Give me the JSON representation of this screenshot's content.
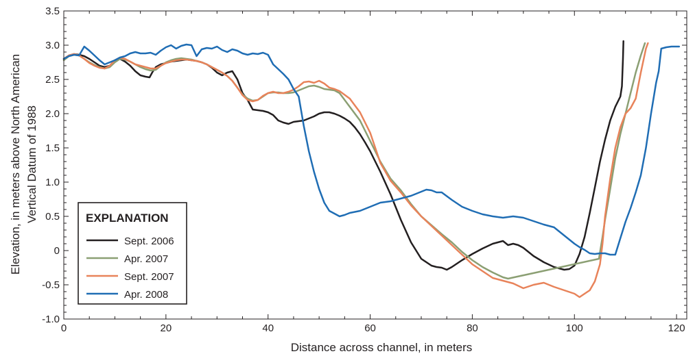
{
  "chart_data": {
    "type": "line",
    "xlabel": "Distance across channel, in meters",
    "ylabel_lines": [
      "Elevation, in meters above North American",
      "Vertical Datum of 1988"
    ],
    "xlim": [
      0,
      122
    ],
    "ylim": [
      -1.0,
      3.5
    ],
    "x_ticks": [
      0,
      20,
      40,
      60,
      80,
      100,
      120
    ],
    "x_tick_labels": [
      "0",
      "20",
      "40",
      "60",
      "80",
      "100",
      "120"
    ],
    "y_ticks": [
      -1.0,
      -0.5,
      0,
      0.5,
      1.0,
      1.5,
      2.0,
      2.5,
      3.0,
      3.5
    ],
    "y_tick_labels": [
      "-1.0",
      "-0.5",
      "0",
      "0.5",
      "1.0",
      "1.5",
      "2.0",
      "2.5",
      "3.0",
      "3.5"
    ],
    "grid": false,
    "legend": {
      "title": "EXPLANATION",
      "position": "bottom-left"
    },
    "series": [
      {
        "name": "Sept. 2006",
        "color": "#231f20",
        "x": [
          0,
          1,
          2,
          3,
          4,
          5,
          6,
          7,
          8,
          9,
          10,
          11,
          12,
          13,
          14,
          15,
          16,
          16.8,
          17.3,
          18,
          19,
          20,
          21,
          22,
          23,
          24,
          25,
          26,
          27,
          28,
          29,
          30,
          31,
          32,
          33,
          34,
          35,
          36,
          37,
          38,
          39,
          40,
          41,
          42,
          43,
          44,
          45,
          46,
          47,
          48,
          49,
          50,
          51,
          52,
          53,
          54,
          55,
          56,
          57,
          58,
          59,
          60,
          62,
          64,
          66,
          68,
          70,
          72,
          73,
          74,
          75,
          76,
          78,
          80,
          82,
          84,
          86,
          87,
          88,
          89,
          90,
          92,
          94,
          96,
          98,
          99,
          100,
          101,
          102,
          103,
          104,
          105,
          106,
          107,
          108,
          109,
          109.3,
          109.5,
          109.6
        ],
        "y": [
          2.8,
          2.85,
          2.87,
          2.86,
          2.84,
          2.8,
          2.75,
          2.7,
          2.68,
          2.7,
          2.78,
          2.8,
          2.76,
          2.7,
          2.62,
          2.56,
          2.54,
          2.53,
          2.6,
          2.68,
          2.72,
          2.74,
          2.76,
          2.77,
          2.78,
          2.79,
          2.78,
          2.77,
          2.75,
          2.72,
          2.67,
          2.6,
          2.56,
          2.6,
          2.62,
          2.5,
          2.3,
          2.2,
          2.06,
          2.05,
          2.04,
          2.02,
          1.98,
          1.9,
          1.87,
          1.85,
          1.88,
          1.89,
          1.9,
          1.93,
          1.96,
          2.0,
          2.02,
          2.02,
          2.0,
          1.97,
          1.93,
          1.88,
          1.8,
          1.7,
          1.58,
          1.45,
          1.15,
          0.82,
          0.45,
          0.12,
          -0.12,
          -0.22,
          -0.24,
          -0.25,
          -0.28,
          -0.24,
          -0.14,
          -0.05,
          0.03,
          0.1,
          0.14,
          0.08,
          0.1,
          0.08,
          0.04,
          -0.08,
          -0.17,
          -0.24,
          -0.28,
          -0.27,
          -0.22,
          -0.05,
          0.2,
          0.55,
          0.92,
          1.3,
          1.62,
          1.9,
          2.1,
          2.25,
          2.4,
          2.8,
          3.06
        ]
      },
      {
        "name": "Apr. 2007",
        "color": "#8b9f73",
        "x": [
          0,
          1,
          2,
          3,
          4,
          5,
          6,
          7,
          8,
          9,
          10,
          11,
          12,
          13,
          14,
          15,
          16,
          17,
          18,
          19,
          20,
          21,
          22,
          23,
          24,
          25,
          26,
          27,
          28,
          29,
          30,
          31,
          32,
          33,
          34,
          35,
          36,
          37,
          38,
          39,
          40,
          41,
          42,
          43,
          44,
          45,
          46,
          47,
          48,
          49,
          50,
          51,
          52,
          53,
          54,
          56,
          58,
          60,
          62,
          64,
          66,
          68,
          70,
          72,
          74,
          76,
          78,
          80,
          82,
          84,
          86,
          87,
          104.8,
          105.5,
          106,
          107,
          108,
          109,
          110,
          111,
          112,
          113,
          113.8
        ],
        "y": [
          2.78,
          2.84,
          2.86,
          2.85,
          2.8,
          2.75,
          2.71,
          2.68,
          2.66,
          2.68,
          2.75,
          2.8,
          2.79,
          2.76,
          2.72,
          2.68,
          2.65,
          2.63,
          2.64,
          2.7,
          2.75,
          2.78,
          2.8,
          2.81,
          2.8,
          2.79,
          2.77,
          2.75,
          2.72,
          2.68,
          2.64,
          2.6,
          2.55,
          2.48,
          2.38,
          2.28,
          2.22,
          2.19,
          2.2,
          2.25,
          2.3,
          2.31,
          2.31,
          2.3,
          2.3,
          2.31,
          2.34,
          2.37,
          2.4,
          2.41,
          2.39,
          2.36,
          2.35,
          2.34,
          2.3,
          2.1,
          1.9,
          1.6,
          1.3,
          1.05,
          0.88,
          0.68,
          0.5,
          0.37,
          0.24,
          0.12,
          -0.02,
          -0.14,
          -0.24,
          -0.32,
          -0.39,
          -0.41,
          -0.12,
          0.2,
          0.45,
          0.9,
          1.35,
          1.7,
          2.0,
          2.3,
          2.6,
          2.85,
          3.03
        ]
      },
      {
        "name": "Sept. 2007",
        "color": "#e8835a",
        "x": [
          0,
          1,
          2,
          3,
          4,
          5,
          6,
          7,
          8,
          9,
          10,
          11,
          12,
          13,
          14,
          15,
          16,
          17,
          18,
          19,
          20,
          21,
          22,
          23,
          24,
          25,
          26,
          27,
          28,
          29,
          30,
          31,
          32,
          33,
          34,
          35,
          36,
          37,
          38,
          39,
          40,
          41,
          42,
          43,
          44,
          45,
          46,
          47,
          48,
          49,
          50,
          51,
          52,
          53,
          54,
          56,
          58,
          60,
          62,
          64,
          66,
          68,
          70,
          72,
          74,
          76,
          78,
          80,
          82,
          84,
          86,
          88,
          90,
          92,
          94,
          96,
          98,
          100,
          101,
          102,
          103,
          104,
          105,
          105.5,
          106,
          107,
          108,
          109,
          110,
          111,
          112,
          113,
          114,
          114.4
        ],
        "y": [
          2.8,
          2.85,
          2.87,
          2.85,
          2.8,
          2.74,
          2.7,
          2.67,
          2.66,
          2.7,
          2.78,
          2.82,
          2.8,
          2.76,
          2.72,
          2.7,
          2.68,
          2.66,
          2.66,
          2.7,
          2.74,
          2.76,
          2.78,
          2.79,
          2.79,
          2.78,
          2.77,
          2.75,
          2.72,
          2.68,
          2.64,
          2.6,
          2.55,
          2.48,
          2.38,
          2.27,
          2.2,
          2.18,
          2.2,
          2.26,
          2.3,
          2.32,
          2.3,
          2.3,
          2.32,
          2.35,
          2.4,
          2.46,
          2.47,
          2.45,
          2.48,
          2.44,
          2.38,
          2.36,
          2.33,
          2.22,
          2.02,
          1.72,
          1.28,
          1.02,
          0.85,
          0.66,
          0.5,
          0.36,
          0.22,
          0.08,
          -0.06,
          -0.2,
          -0.3,
          -0.4,
          -0.44,
          -0.48,
          -0.55,
          -0.5,
          -0.47,
          -0.53,
          -0.58,
          -0.63,
          -0.68,
          -0.63,
          -0.58,
          -0.45,
          -0.2,
          0.1,
          0.5,
          1.05,
          1.5,
          1.8,
          2.0,
          2.08,
          2.22,
          2.6,
          2.95,
          3.03
        ]
      },
      {
        "name": "Apr. 2008",
        "color": "#1f6db4",
        "x": [
          0,
          1,
          2,
          3,
          4,
          5,
          6,
          7,
          8,
          9,
          10,
          11,
          12,
          13,
          14,
          15,
          16,
          17,
          18,
          19,
          20,
          21,
          22,
          23,
          24,
          25,
          26,
          27,
          28,
          29,
          30,
          31,
          32,
          33,
          34,
          35,
          36,
          37,
          38,
          39,
          40,
          41,
          42,
          43,
          44,
          45,
          46,
          47,
          48,
          49,
          50,
          51,
          52,
          53,
          54,
          55,
          56,
          58,
          60,
          62,
          64,
          66,
          68,
          70,
          71,
          72,
          73,
          74,
          76,
          78,
          80,
          82,
          84,
          86,
          88,
          90,
          92,
          94,
          96,
          98,
          100,
          101,
          102,
          103,
          104,
          105,
          106,
          107,
          108,
          109,
          110,
          111,
          112,
          113,
          114,
          115,
          116,
          116.5,
          117,
          117.5,
          118,
          119,
          120,
          120.5
        ],
        "y": [
          2.8,
          2.84,
          2.86,
          2.85,
          2.98,
          2.92,
          2.85,
          2.78,
          2.72,
          2.75,
          2.78,
          2.82,
          2.84,
          2.88,
          2.9,
          2.88,
          2.88,
          2.89,
          2.86,
          2.92,
          2.97,
          3.0,
          2.95,
          2.99,
          3.01,
          3.0,
          2.84,
          2.94,
          2.96,
          2.95,
          2.98,
          2.93,
          2.9,
          2.94,
          2.92,
          2.88,
          2.86,
          2.88,
          2.87,
          2.89,
          2.86,
          2.72,
          2.65,
          2.58,
          2.5,
          2.36,
          2.25,
          1.82,
          1.45,
          1.15,
          0.9,
          0.7,
          0.58,
          0.54,
          0.5,
          0.52,
          0.55,
          0.58,
          0.64,
          0.7,
          0.72,
          0.76,
          0.8,
          0.86,
          0.89,
          0.88,
          0.85,
          0.85,
          0.74,
          0.64,
          0.58,
          0.53,
          0.5,
          0.48,
          0.5,
          0.48,
          0.43,
          0.38,
          0.34,
          0.22,
          0.1,
          0.05,
          0.01,
          -0.04,
          -0.05,
          -0.04,
          -0.04,
          -0.06,
          -0.06,
          0.18,
          0.42,
          0.62,
          0.85,
          1.1,
          1.5,
          2.0,
          2.45,
          2.62,
          2.95,
          2.96,
          2.97,
          2.98,
          2.98,
          2.98
        ]
      }
    ]
  }
}
